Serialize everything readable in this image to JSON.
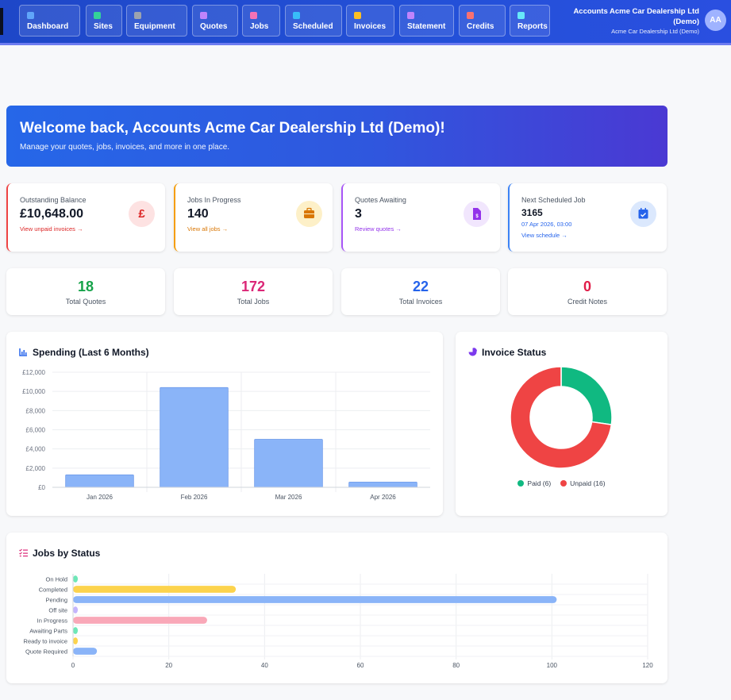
{
  "nav": {
    "items": [
      {
        "label": "Dashboard",
        "icon": "gauge-icon",
        "color": "#60a5fa"
      },
      {
        "label": "Sites",
        "icon": "map-pin-icon",
        "color": "#34d399"
      },
      {
        "label": "Equipment",
        "icon": "cogs-icon",
        "color": "#9ca3af"
      },
      {
        "label": "Quotes",
        "icon": "file-icon",
        "color": "#c084fc"
      },
      {
        "label": "Jobs",
        "icon": "briefcase-icon",
        "color": "#f472b6"
      },
      {
        "label": "Scheduled",
        "icon": "calendar-icon",
        "color": "#38bdf8"
      },
      {
        "label": "Invoices",
        "icon": "invoice-icon",
        "color": "#fbbf24"
      },
      {
        "label": "Statement",
        "icon": "statement-icon",
        "color": "#c084fc"
      },
      {
        "label": "Credits",
        "icon": "undo-icon",
        "color": "#f87171"
      },
      {
        "label": "Reports",
        "icon": "chart-icon",
        "color": "#67e8f9"
      }
    ],
    "account_name_line1": "Accounts Acme Car Dealership Ltd",
    "account_name_line2": "(Demo)",
    "account_company": "Acme Car Dealership Ltd (Demo)",
    "avatar_initials": "AA"
  },
  "welcome": {
    "title": "Welcome back, Accounts Acme Car Dealership Ltd (Demo)!",
    "subtitle": "Manage your quotes, jobs, invoices, and more in one place."
  },
  "stats": {
    "outstanding": {
      "label": "Outstanding Balance",
      "value": "£10,648.00",
      "link": "View unpaid invoices →",
      "icon_glyph": "£",
      "accent": "#ef4444"
    },
    "jobs": {
      "label": "Jobs In Progress",
      "value": "140",
      "link": "View all jobs →",
      "accent": "#f59e0b"
    },
    "quotes": {
      "label": "Quotes Awaiting",
      "value": "3",
      "link": "Review quotes →",
      "accent": "#a855f7"
    },
    "next_job": {
      "label": "Next Scheduled Job",
      "value": "3165",
      "date": "07 Apr 2026, 03:00",
      "link": "View schedule →",
      "accent": "#3b82f6"
    }
  },
  "totals": {
    "quotes": {
      "value": "18",
      "label": "Total Quotes",
      "color": "#16a34a"
    },
    "jobs": {
      "value": "172",
      "label": "Total Jobs",
      "color": "#db2777"
    },
    "invoices": {
      "value": "22",
      "label": "Total Invoices",
      "color": "#2563eb"
    },
    "credits": {
      "value": "0",
      "label": "Credit Notes",
      "color": "#e11d48"
    }
  },
  "panels": {
    "spending_title": "Spending (Last 6 Months)",
    "invoice_title": "Invoice Status",
    "jobs_title": "Jobs by Status"
  },
  "chart_data": [
    {
      "type": "bar",
      "title": "Spending (Last 6 Months)",
      "categories": [
        "Jan 2026",
        "Feb 2026",
        "Mar 2026",
        "Apr 2026"
      ],
      "values": [
        1300,
        10400,
        5000,
        550
      ],
      "ylim": [
        0,
        12000
      ],
      "yticks": [
        "£0",
        "£2,000",
        "£4,000",
        "£6,000",
        "£8,000",
        "£10,000",
        "£12,000"
      ],
      "ytick_values": [
        0,
        2000,
        4000,
        6000,
        8000,
        10000,
        12000
      ],
      "color": "#8ab4f8",
      "grid": true
    },
    {
      "type": "pie",
      "title": "Invoice Status",
      "donut": true,
      "slices": [
        {
          "label": "Paid (6)",
          "value": 6,
          "color": "#10b981"
        },
        {
          "label": "Unpaid (16)",
          "value": 16,
          "color": "#ef4444"
        }
      ],
      "legend": "bottom"
    },
    {
      "type": "bar",
      "orientation": "horizontal",
      "title": "Jobs by Status",
      "categories": [
        "On Hold",
        "Completed",
        "Pending",
        "Off site",
        "In Progress",
        "Awaiting Parts",
        "Ready to invoice",
        "Quote Required"
      ],
      "values": [
        1,
        34,
        101,
        1,
        28,
        1,
        1,
        5
      ],
      "colors": [
        "#6ee7b7",
        "#fcd34d",
        "#8ab4f8",
        "#c4b5fd",
        "#f9a8b8",
        "#6ee7b7",
        "#fcd34d",
        "#8ab4f8"
      ],
      "xlim": [
        0,
        120
      ],
      "xticks": [
        0,
        20,
        40,
        60,
        80,
        100,
        120
      ],
      "grid": true
    }
  ]
}
